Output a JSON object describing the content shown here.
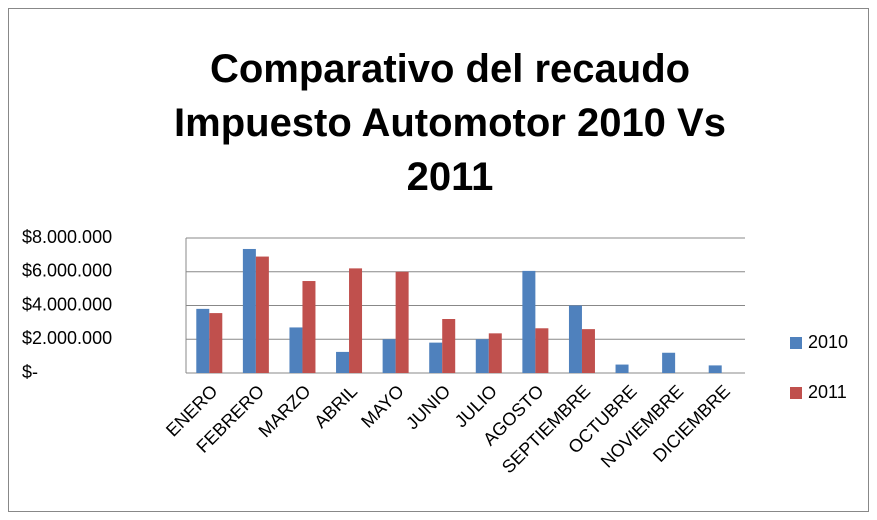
{
  "chart_data": {
    "type": "bar",
    "title": "Comparativo del recaudo Impuesto Automotor 2010 Vs 2011",
    "categories": [
      "ENERO",
      "FEBRERO",
      "MARZO",
      "ABRIL",
      "MAYO",
      "JUNIO",
      "JULIO",
      "AGOSTO",
      "SEPTIEMBRE",
      "OCTUBRE",
      "NOVIEMBRE",
      "DICIEMBRE"
    ],
    "series": [
      {
        "name": "2010",
        "color": "#4f81bd",
        "values": [
          3800000,
          7350000,
          2700000,
          1250000,
          2000000,
          1800000,
          2000000,
          6050000,
          4000000,
          500000,
          1200000,
          450000
        ]
      },
      {
        "name": "2011",
        "color": "#c0504d",
        "values": [
          3550000,
          6900000,
          5450000,
          6200000,
          6000000,
          3200000,
          2350000,
          2650000,
          2600000,
          null,
          null,
          null
        ]
      }
    ],
    "ylim": [
      0,
      8000000
    ],
    "yticks": [
      {
        "value": 0,
        "label": "$-"
      },
      {
        "value": 2000000,
        "label": "$2.000.000"
      },
      {
        "value": 4000000,
        "label": "$4.000.000"
      },
      {
        "value": 6000000,
        "label": "$6.000.000"
      },
      {
        "value": 8000000,
        "label": "$8.000.000"
      }
    ],
    "grid": true,
    "legend": "right"
  }
}
